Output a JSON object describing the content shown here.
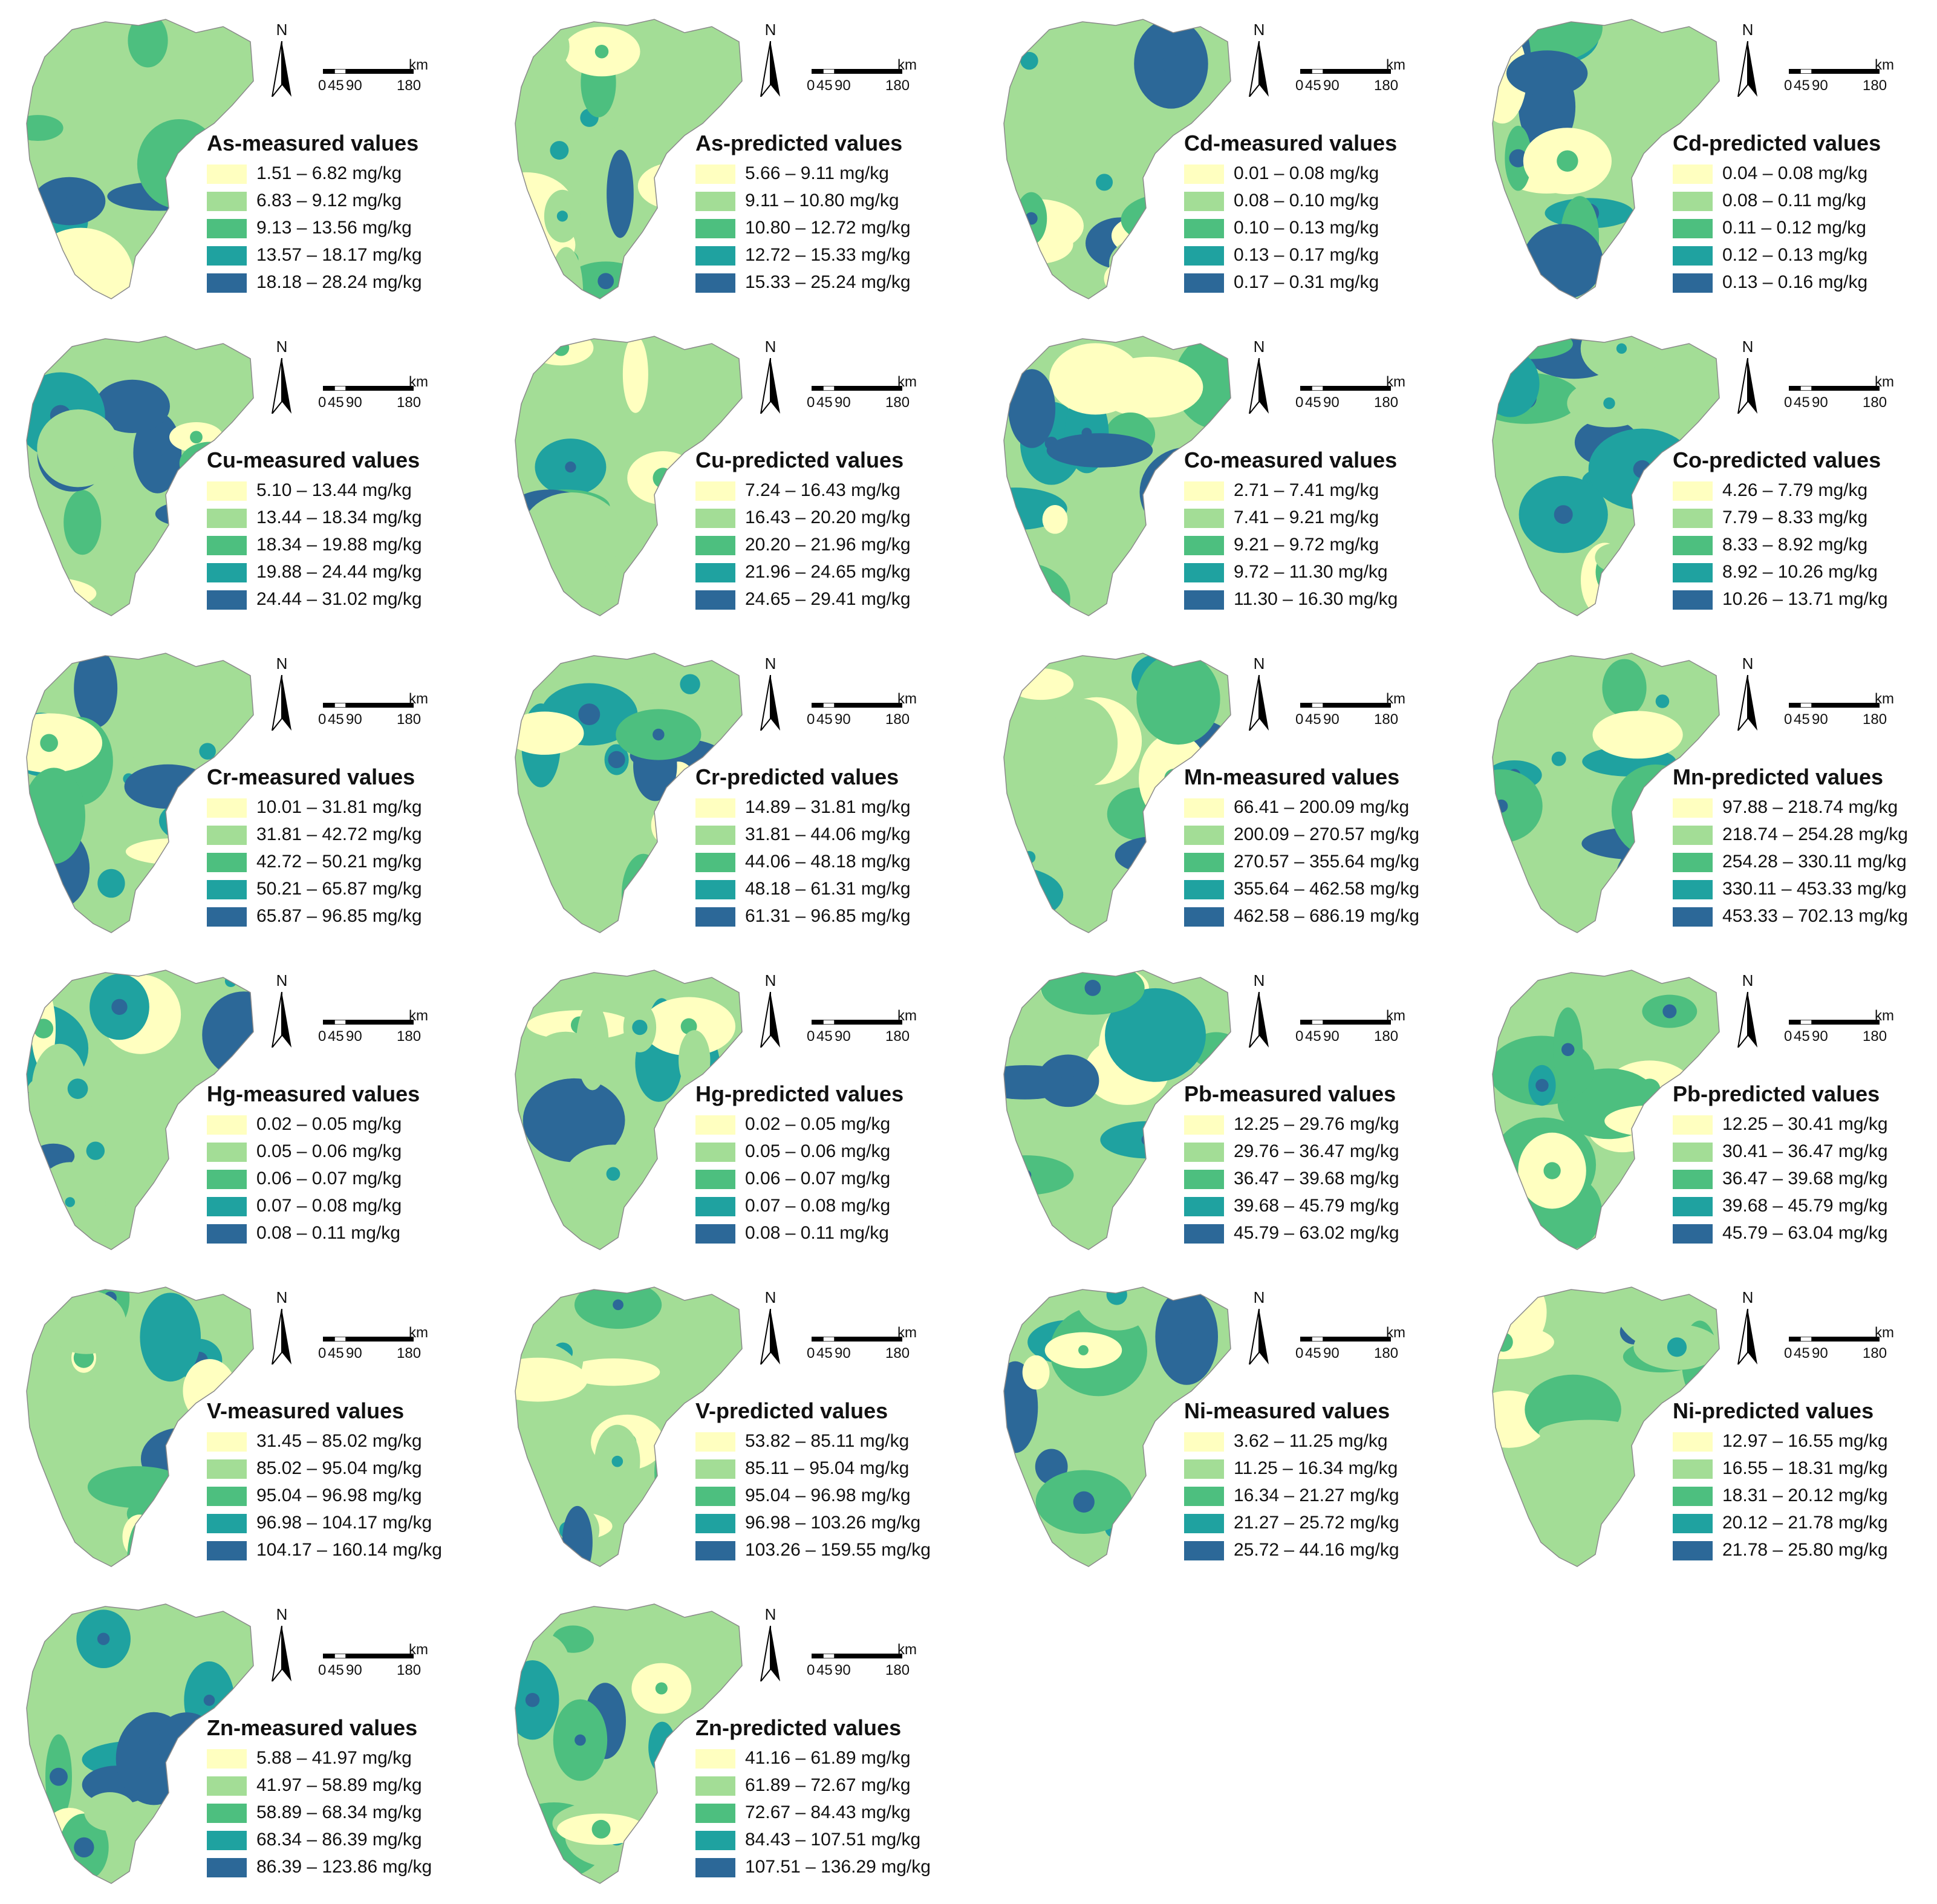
{
  "palette": [
    "#ffffc0",
    "#a3dd96",
    "#4dbf7f",
    "#1fa2a0",
    "#2c6898"
  ],
  "north_label": "N",
  "scale": {
    "unit": "km",
    "labels": [
      "0",
      "45",
      "90",
      "180"
    ]
  },
  "panels": [
    {
      "title": "As-measured values",
      "legend": [
        "1.51 – 6.82 mg/kg",
        "6.83 – 9.12 mg/kg",
        "9.13 – 13.56 mg/kg",
        "13.57 – 18.17 mg/kg",
        "18.18 – 28.24 mg/kg"
      ]
    },
    {
      "title": "As-predicted values",
      "legend": [
        "5.66 – 9.11 mg/kg",
        "9.11 – 10.80 mg/kg",
        "10.80 – 12.72 mg/kg",
        "12.72 – 15.33 mg/kg",
        "15.33 – 25.24 mg/kg"
      ]
    },
    {
      "title": "Cd-measured values",
      "legend": [
        "0.01 – 0.08 mg/kg",
        "0.08 – 0.10 mg/kg",
        "0.10 – 0.13 mg/kg",
        "0.13 – 0.17 mg/kg",
        "0.17 – 0.31 mg/kg"
      ]
    },
    {
      "title": "Cd-predicted values",
      "legend": [
        "0.04 – 0.08 mg/kg",
        "0.08 – 0.11 mg/kg",
        "0.11 – 0.12 mg/kg",
        "0.12 – 0.13 mg/kg",
        "0.13 – 0.16 mg/kg"
      ]
    },
    {
      "title": "Cu-measured values",
      "legend": [
        "5.10 – 13.44 mg/kg",
        "13.44 – 18.34 mg/kg",
        "18.34 – 19.88 mg/kg",
        "19.88 – 24.44 mg/kg",
        "24.44 – 31.02 mg/kg"
      ]
    },
    {
      "title": "Cu-predicted values",
      "legend": [
        "7.24 – 16.43 mg/kg",
        "16.43 – 20.20 mg/kg",
        "20.20 – 21.96 mg/kg",
        "21.96 – 24.65 mg/kg",
        "24.65 – 29.41 mg/kg"
      ]
    },
    {
      "title": "Co-measured values",
      "legend": [
        "2.71 – 7.41 mg/kg",
        "7.41 – 9.21 mg/kg",
        "9.21 – 9.72 mg/kg",
        "9.72 – 11.30 mg/kg",
        "11.30 – 16.30 mg/kg"
      ]
    },
    {
      "title": "Co-predicted values",
      "legend": [
        "4.26 – 7.79 mg/kg",
        "7.79 – 8.33 mg/kg",
        "8.33 – 8.92 mg/kg",
        "8.92 – 10.26 mg/kg",
        "10.26 – 13.71 mg/kg"
      ]
    },
    {
      "title": "Cr-measured values",
      "legend": [
        "10.01 – 31.81 mg/kg",
        "31.81 – 42.72 mg/kg",
        "42.72 – 50.21 mg/kg",
        "50.21 – 65.87 mg/kg",
        "65.87 – 96.85 mg/kg"
      ]
    },
    {
      "title": "Cr-predicted values",
      "legend": [
        "14.89 – 31.81 mg/kg",
        "31.81 – 44.06 mg/kg",
        "44.06 – 48.18 mg/kg",
        "48.18 – 61.31 mg/kg",
        "61.31 – 96.85 mg/kg"
      ]
    },
    {
      "title": "Mn-measured values",
      "legend": [
        "66.41 – 200.09 mg/kg",
        "200.09 – 270.57 mg/kg",
        "270.57 – 355.64 mg/kg",
        "355.64 – 462.58 mg/kg",
        "462.58 – 686.19 mg/kg"
      ]
    },
    {
      "title": "Mn-predicted values",
      "legend": [
        "97.88 – 218.74 mg/kg",
        "218.74 – 254.28 mg/kg",
        "254.28 – 330.11 mg/kg",
        "330.11 – 453.33 mg/kg",
        "453.33 – 702.13 mg/kg"
      ]
    },
    {
      "title": "Hg-measured values",
      "legend": [
        "0.02 – 0.05 mg/kg",
        "0.05 – 0.06 mg/kg",
        "0.06 – 0.07 mg/kg",
        "0.07 – 0.08 mg/kg",
        "0.08 – 0.11 mg/kg"
      ]
    },
    {
      "title": "Hg-predicted values",
      "legend": [
        "0.02 – 0.05 mg/kg",
        "0.05 – 0.06 mg/kg",
        "0.06 – 0.07 mg/kg",
        "0.07 – 0.08 mg/kg",
        "0.08 – 0.11 mg/kg"
      ]
    },
    {
      "title": "Pb-measured values",
      "legend": [
        "12.25 – 29.76 mg/kg",
        "29.76 – 36.47 mg/kg",
        "36.47 – 39.68 mg/kg",
        "39.68 – 45.79 mg/kg",
        "45.79 – 63.02 mg/kg"
      ]
    },
    {
      "title": "Pb-predicted values",
      "legend": [
        "12.25 – 30.41 mg/kg",
        "30.41 – 36.47 mg/kg",
        "36.47 – 39.68 mg/kg",
        "39.68 – 45.79 mg/kg",
        "45.79 – 63.04 mg/kg"
      ]
    },
    {
      "title": "V-measured values",
      "legend": [
        "31.45 – 85.02 mg/kg",
        "85.02 – 95.04 mg/kg",
        "95.04 – 96.98 mg/kg",
        "96.98 – 104.17 mg/kg",
        "104.17 – 160.14 mg/kg"
      ]
    },
    {
      "title": "V-predicted values",
      "legend": [
        "53.82 – 85.11 mg/kg",
        "85.11 – 95.04 mg/kg",
        "95.04 – 96.98 mg/kg",
        "96.98 – 103.26 mg/kg",
        "103.26 – 159.55 mg/kg"
      ]
    },
    {
      "title": "Ni-measured values",
      "legend": [
        "3.62 – 11.25 mg/kg",
        "11.25 – 16.34 mg/kg",
        "16.34 – 21.27 mg/kg",
        "21.27 – 25.72 mg/kg",
        "25.72 – 44.16 mg/kg"
      ]
    },
    {
      "title": "Ni-predicted values",
      "legend": [
        "12.97 – 16.55 mg/kg",
        "16.55 – 18.31 mg/kg",
        "18.31 – 20.12 mg/kg",
        "20.12 – 21.78 mg/kg",
        "21.78 – 25.80 mg/kg"
      ]
    },
    {
      "title": "Zn-measured values",
      "legend": [
        "5.88 – 41.97 mg/kg",
        "41.97 – 58.89 mg/kg",
        "58.89 – 68.34 mg/kg",
        "68.34 – 86.39 mg/kg",
        "86.39 – 123.86 mg/kg"
      ]
    },
    {
      "title": "Zn-predicted values",
      "legend": [
        "41.16 – 61.89 mg/kg",
        "61.89 – 72.67 mg/kg",
        "72.67 – 84.43 mg/kg",
        "84.43 – 107.51 mg/kg",
        "107.51 – 136.29 mg/kg"
      ]
    }
  ]
}
